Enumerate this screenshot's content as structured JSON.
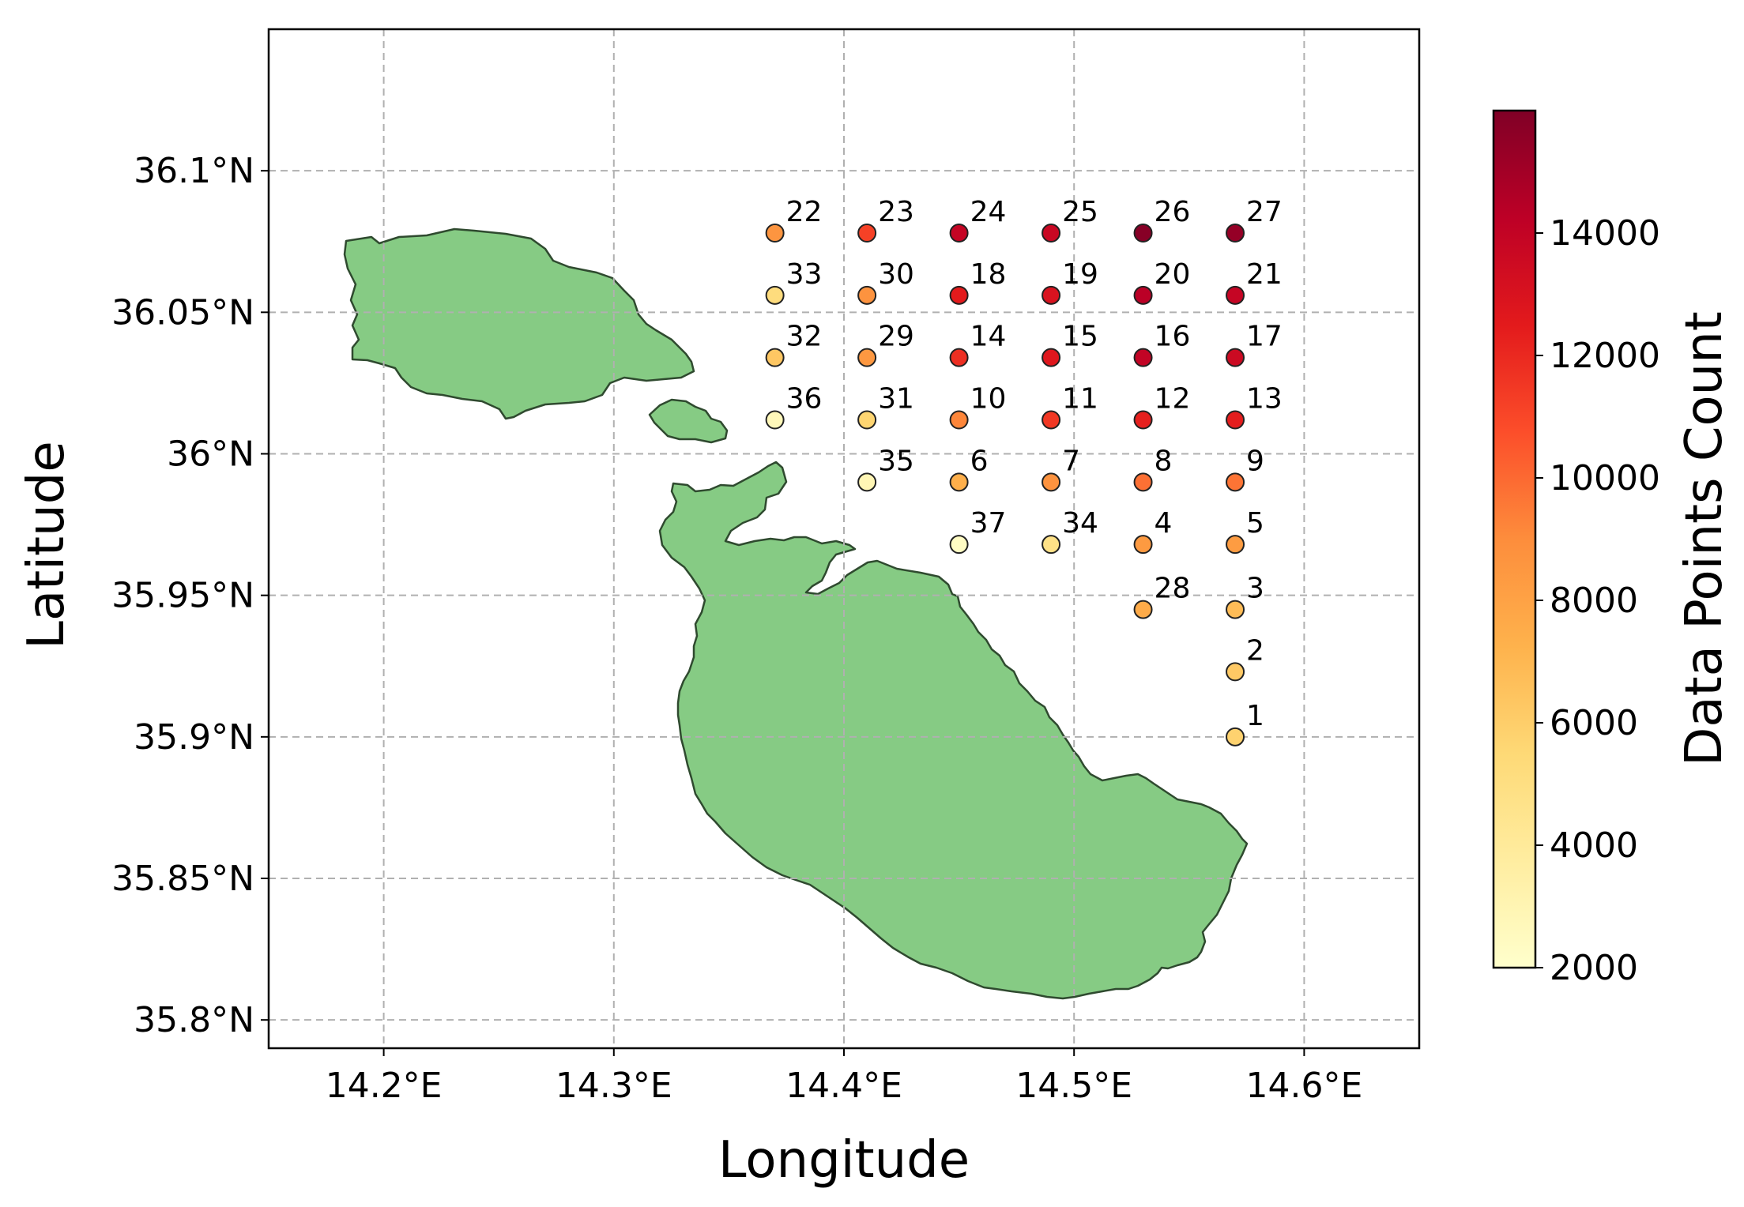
{
  "chart_data": {
    "type": "scatter",
    "xlabel": "Longitude",
    "ylabel": "Latitude",
    "colorbar_label": "Data Points Count",
    "xlim": [
      14.15,
      14.65
    ],
    "ylim": [
      35.79,
      36.15
    ],
    "x_ticks": [
      {
        "value": 14.2,
        "label": "14.2°E"
      },
      {
        "value": 14.3,
        "label": "14.3°E"
      },
      {
        "value": 14.4,
        "label": "14.4°E"
      },
      {
        "value": 14.5,
        "label": "14.5°E"
      },
      {
        "value": 14.6,
        "label": "14.6°E"
      }
    ],
    "y_ticks": [
      {
        "value": 35.8,
        "label": "35.8°N"
      },
      {
        "value": 35.85,
        "label": "35.85°N"
      },
      {
        "value": 35.9,
        "label": "35.9°N"
      },
      {
        "value": 35.95,
        "label": "35.95°N"
      },
      {
        "value": 36.0,
        "label": "36°N"
      },
      {
        "value": 36.05,
        "label": "36.05°N"
      },
      {
        "value": 36.1,
        "label": "36.1°N"
      }
    ],
    "colorbar": {
      "min": 2000,
      "max": 16000,
      "ticks": [
        {
          "value": 2000,
          "label": "2000"
        },
        {
          "value": 4000,
          "label": "4000"
        },
        {
          "value": 6000,
          "label": "6000"
        },
        {
          "value": 8000,
          "label": "8000"
        },
        {
          "value": 10000,
          "label": "10000"
        },
        {
          "value": 12000,
          "label": "12000"
        },
        {
          "value": 14000,
          "label": "14000"
        }
      ],
      "colormap": "YlOrRd"
    },
    "grid": true,
    "land_color": "#86cb84",
    "points": [
      {
        "id": "1",
        "lon": 14.57,
        "lat": 35.9,
        "count": 5800
      },
      {
        "id": "2",
        "lon": 14.57,
        "lat": 35.923,
        "count": 6200
      },
      {
        "id": "3",
        "lon": 14.57,
        "lat": 35.945,
        "count": 6800
      },
      {
        "id": "4",
        "lon": 14.53,
        "lat": 35.968,
        "count": 8400
      },
      {
        "id": "5",
        "lon": 14.57,
        "lat": 35.968,
        "count": 8300
      },
      {
        "id": "6",
        "lon": 14.45,
        "lat": 35.99,
        "count": 7400
      },
      {
        "id": "7",
        "lon": 14.49,
        "lat": 35.99,
        "count": 8700
      },
      {
        "id": "8",
        "lon": 14.53,
        "lat": 35.99,
        "count": 9800
      },
      {
        "id": "9",
        "lon": 14.57,
        "lat": 35.99,
        "count": 9700
      },
      {
        "id": "10",
        "lon": 14.45,
        "lat": 36.012,
        "count": 9200
      },
      {
        "id": "11",
        "lon": 14.49,
        "lat": 36.012,
        "count": 11500
      },
      {
        "id": "12",
        "lon": 14.53,
        "lat": 36.012,
        "count": 12300
      },
      {
        "id": "13",
        "lon": 14.57,
        "lat": 36.012,
        "count": 12400
      },
      {
        "id": "14",
        "lon": 14.45,
        "lat": 36.034,
        "count": 11800
      },
      {
        "id": "15",
        "lon": 14.49,
        "lat": 36.034,
        "count": 12700
      },
      {
        "id": "16",
        "lon": 14.53,
        "lat": 36.034,
        "count": 14000
      },
      {
        "id": "17",
        "lon": 14.57,
        "lat": 36.034,
        "count": 13600
      },
      {
        "id": "18",
        "lon": 14.45,
        "lat": 36.056,
        "count": 12500
      },
      {
        "id": "19",
        "lon": 14.49,
        "lat": 36.056,
        "count": 13000
      },
      {
        "id": "20",
        "lon": 14.53,
        "lat": 36.056,
        "count": 14300
      },
      {
        "id": "21",
        "lon": 14.57,
        "lat": 36.056,
        "count": 13900
      },
      {
        "id": "22",
        "lon": 14.37,
        "lat": 36.078,
        "count": 8600
      },
      {
        "id": "23",
        "lon": 14.41,
        "lat": 36.078,
        "count": 11200
      },
      {
        "id": "24",
        "lon": 14.45,
        "lat": 36.078,
        "count": 13900
      },
      {
        "id": "25",
        "lon": 14.49,
        "lat": 36.078,
        "count": 13700
      },
      {
        "id": "26",
        "lon": 14.53,
        "lat": 36.078,
        "count": 15800
      },
      {
        "id": "27",
        "lon": 14.57,
        "lat": 36.078,
        "count": 15400
      },
      {
        "id": "28",
        "lon": 14.53,
        "lat": 35.945,
        "count": 7600
      },
      {
        "id": "29",
        "lon": 14.41,
        "lat": 36.034,
        "count": 8500
      },
      {
        "id": "30",
        "lon": 14.41,
        "lat": 36.056,
        "count": 8700
      },
      {
        "id": "31",
        "lon": 14.41,
        "lat": 36.012,
        "count": 5700
      },
      {
        "id": "32",
        "lon": 14.37,
        "lat": 36.034,
        "count": 6300
      },
      {
        "id": "33",
        "lon": 14.37,
        "lat": 36.056,
        "count": 5200
      },
      {
        "id": "34",
        "lon": 14.49,
        "lat": 35.968,
        "count": 4800
      },
      {
        "id": "35",
        "lon": 14.41,
        "lat": 35.99,
        "count": 2900
      },
      {
        "id": "36",
        "lon": 14.37,
        "lat": 36.012,
        "count": 2700
      },
      {
        "id": "37",
        "lon": 14.45,
        "lat": 35.968,
        "count": 2300
      }
    ]
  }
}
